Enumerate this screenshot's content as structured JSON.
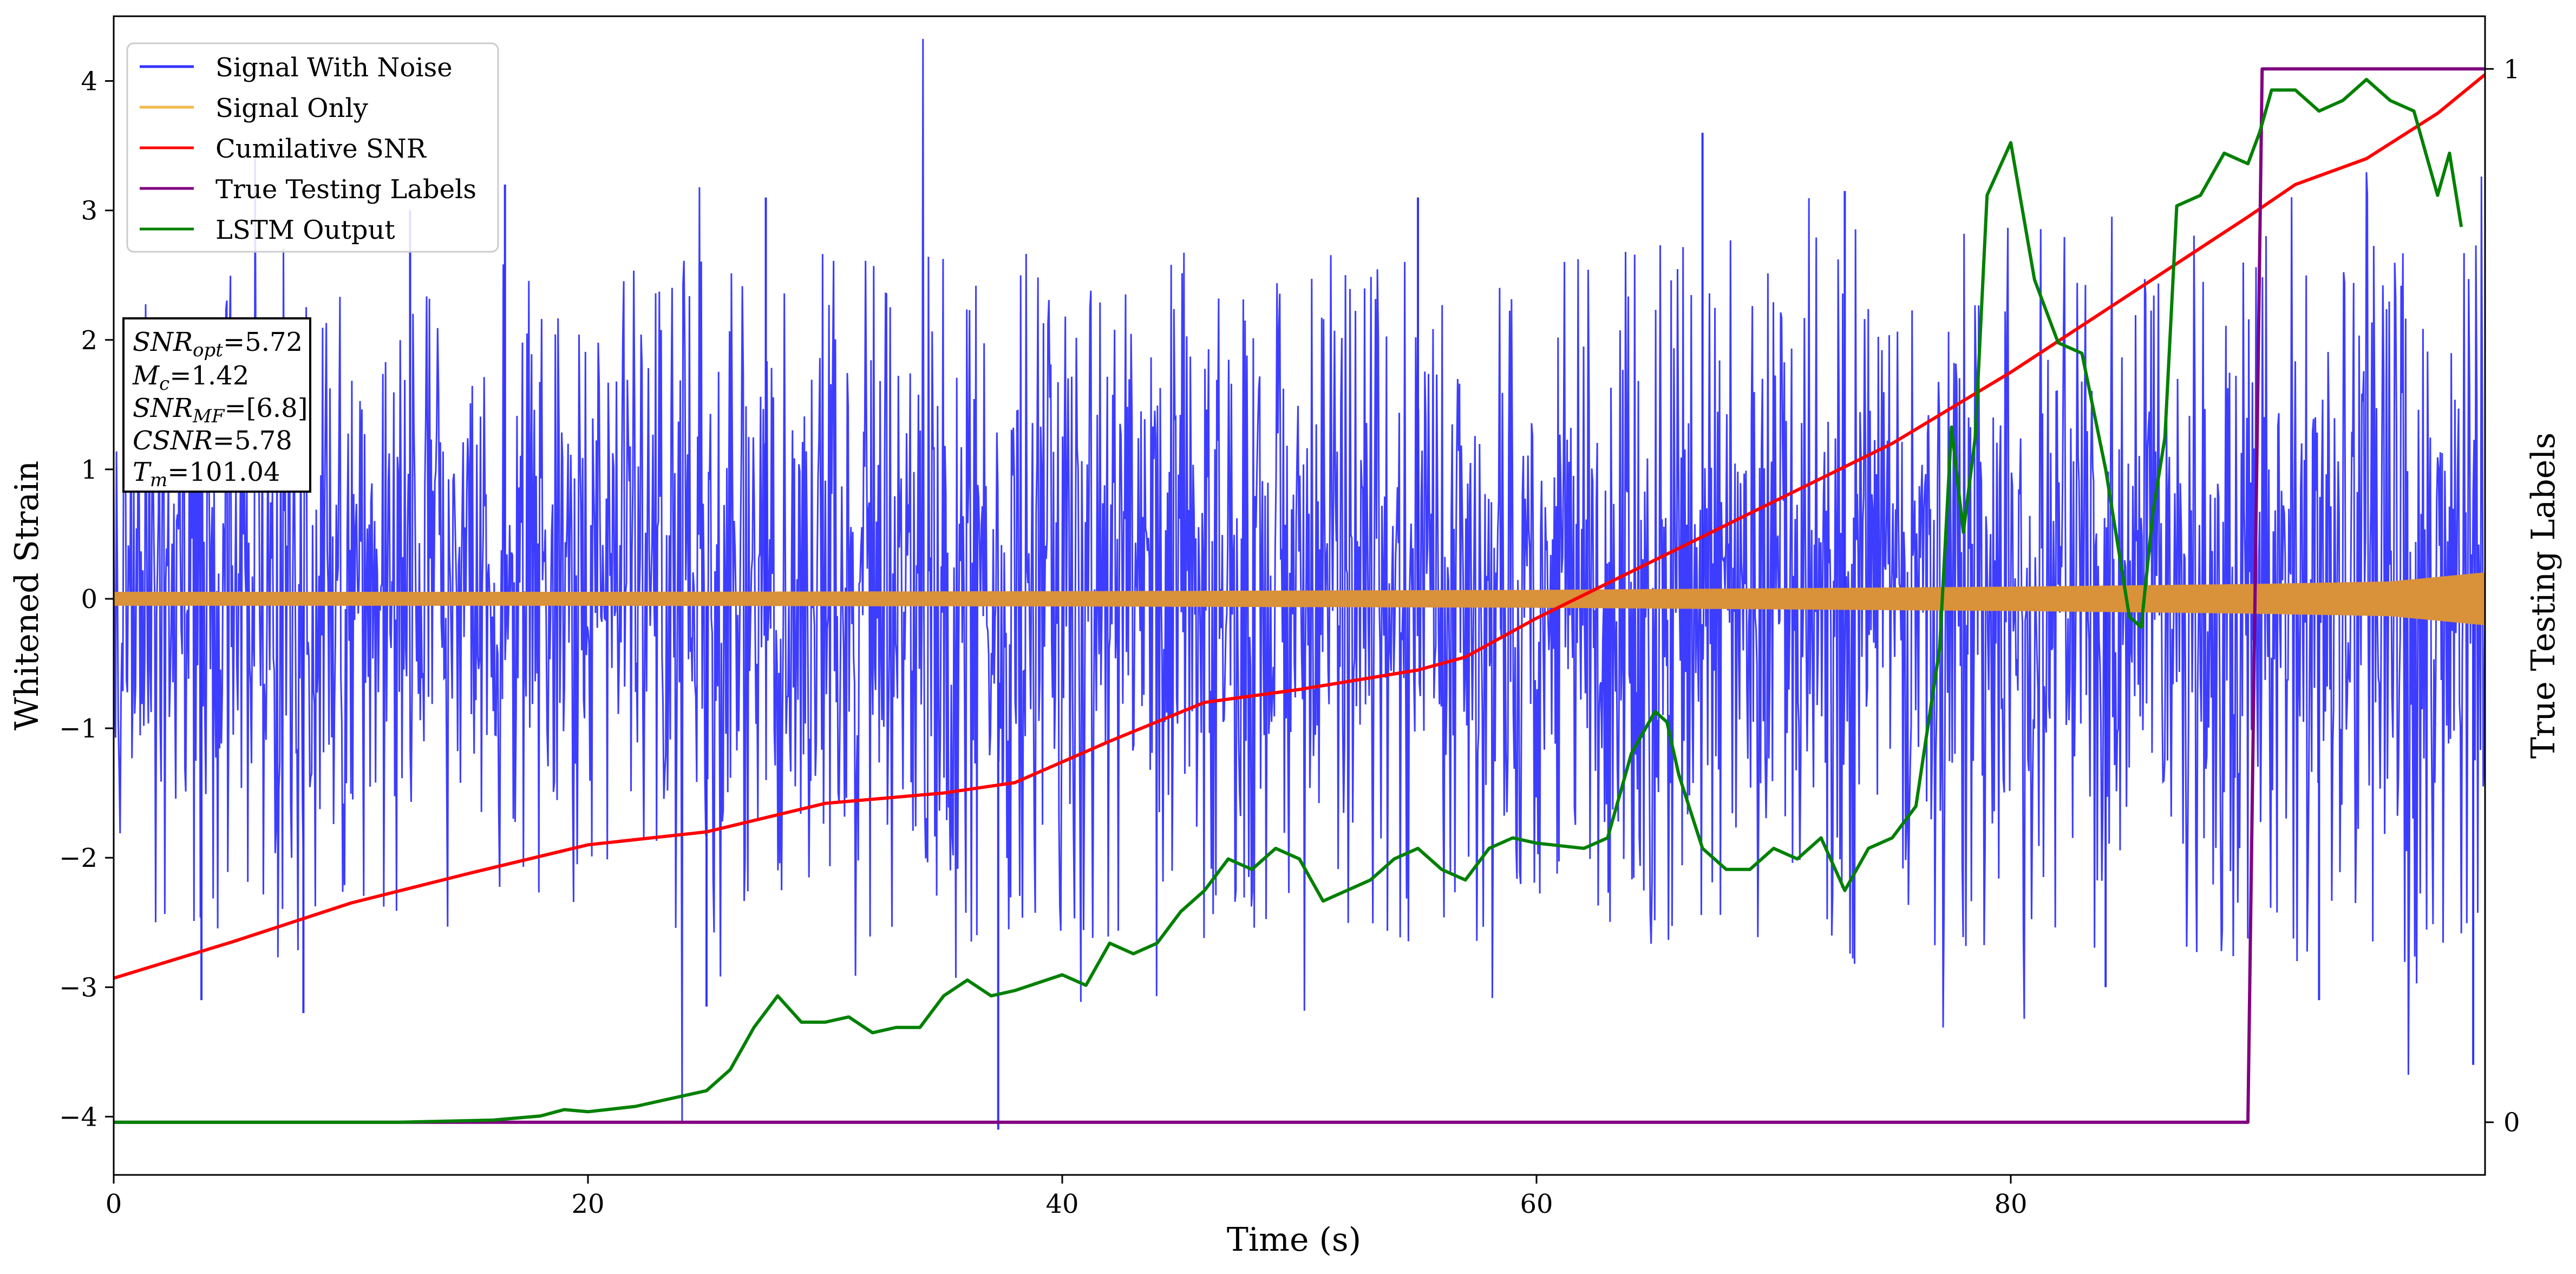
{
  "chart_data": {
    "type": "line",
    "xlabel": "Time (s)",
    "ylabel_left": "Whitened Strain",
    "ylabel_right": "True Testing Labels",
    "xlim": [
      0,
      100
    ],
    "ylim_left": [
      -4.45,
      4.5
    ],
    "ylim_right": [
      -0.05,
      1.05
    ],
    "x_ticks": [
      0,
      20,
      40,
      60,
      80
    ],
    "y_ticks_left": [
      -4,
      -3,
      -2,
      -1,
      0,
      1,
      2,
      3,
      4
    ],
    "y_ticks_right": [
      0,
      1
    ],
    "grid": false,
    "legend": {
      "position": "top-left",
      "entries": [
        {
          "name": "Signal With Noise",
          "color": "#3333ff"
        },
        {
          "name": "Signal Only",
          "color": "#f5b84a"
        },
        {
          "name": "Cumilative SNR",
          "color": "#ff0000"
        },
        {
          "name": "True Testing Labels",
          "color": "#800080"
        },
        {
          "name": "LSTM Output",
          "color": "#008000"
        }
      ]
    },
    "annotation": {
      "lines": [
        {
          "sym": "SNR",
          "sub": "opt",
          "value": "=5.72"
        },
        {
          "sym": "M",
          "sub": "c",
          "value": "=1.42"
        },
        {
          "sym": "SNR",
          "sub": "MF",
          "value": "=[6.8]"
        },
        {
          "sym": "CSNR",
          "sub": "",
          "value": "=5.78"
        },
        {
          "sym": "T",
          "sub": "m",
          "value": "=101.04"
        }
      ]
    },
    "series": [
      {
        "name": "Signal With Noise",
        "axis": "left",
        "color": "#3333ff",
        "envelope": {
          "x": [
            0,
            10,
            20,
            30,
            40,
            50,
            60,
            70,
            80,
            90,
            100
          ],
          "typical_high": [
            1.8,
            1.9,
            1.9,
            2.0,
            2.0,
            2.0,
            2.0,
            2.1,
            2.2,
            2.2,
            2.2
          ],
          "typical_low": [
            -1.9,
            -1.9,
            -1.9,
            -2.0,
            -2.0,
            -2.0,
            -2.0,
            -2.0,
            -2.1,
            -2.1,
            -2.1
          ]
        },
        "spikes": [
          [
            3.7,
            -3.1
          ],
          [
            8.0,
            -3.2
          ],
          [
            12.5,
            3.0
          ],
          [
            16.5,
            3.2
          ],
          [
            25.0,
            -3.15
          ],
          [
            27.5,
            3.1
          ],
          [
            37.3,
            -4.1
          ],
          [
            55.0,
            3.1
          ],
          [
            67.0,
            3.6
          ],
          [
            73.0,
            3.15
          ],
          [
            84.0,
            -3.0
          ],
          [
            93.0,
            -3.1
          ],
          [
            99.5,
            -3.6
          ]
        ]
      },
      {
        "name": "Signal Only",
        "axis": "left",
        "color": "#d9913a",
        "amplitude": {
          "x": [
            0,
            20,
            40,
            60,
            80,
            90,
            96,
            100
          ],
          "values": [
            0.05,
            0.05,
            0.055,
            0.065,
            0.09,
            0.11,
            0.13,
            0.2
          ]
        }
      },
      {
        "name": "Cumilative SNR",
        "axis": "left",
        "color": "#ff0000",
        "x": [
          0,
          5,
          10,
          15,
          20,
          25,
          30,
          35,
          38,
          42,
          46,
          50,
          55,
          57,
          60,
          65,
          70,
          75,
          80,
          85,
          90,
          92,
          95,
          98,
          100
        ],
        "y": [
          -2.93,
          -2.65,
          -2.35,
          -2.12,
          -1.9,
          -1.8,
          -1.58,
          -1.5,
          -1.42,
          -1.1,
          -0.8,
          -0.7,
          -0.55,
          -0.45,
          -0.15,
          0.3,
          0.75,
          1.2,
          1.75,
          2.35,
          2.95,
          3.2,
          3.4,
          3.75,
          4.05
        ]
      },
      {
        "name": "True Testing Labels",
        "axis": "right",
        "color": "#800080",
        "x": [
          0,
          90.0,
          90.6,
          100
        ],
        "y": [
          0,
          0,
          1,
          1
        ]
      },
      {
        "name": "LSTM Output",
        "axis": "right",
        "color": "#008000",
        "x": [
          0,
          12,
          16,
          18,
          19,
          20,
          22,
          25,
          26,
          27,
          28,
          29,
          30,
          31,
          32,
          33,
          34,
          35,
          36,
          37,
          38,
          40,
          41,
          42,
          43,
          44,
          45,
          46,
          47,
          48,
          49,
          50,
          51,
          52,
          53,
          54,
          55,
          56,
          57,
          58,
          59,
          60,
          62,
          63,
          64,
          65,
          65.5,
          66,
          67,
          68,
          69,
          70,
          71,
          72,
          73,
          74,
          75,
          76,
          77,
          77.5,
          78,
          78.5,
          79,
          80,
          81,
          82,
          83,
          84,
          85,
          85.5,
          86,
          86.5,
          87,
          88,
          89,
          90,
          90.5,
          91,
          92,
          93,
          94,
          95,
          96,
          97,
          98,
          98.5,
          99
        ],
        "y": [
          0,
          0,
          0.002,
          0.006,
          0.012,
          0.01,
          0.015,
          0.03,
          0.05,
          0.09,
          0.12,
          0.095,
          0.095,
          0.1,
          0.085,
          0.09,
          0.09,
          0.12,
          0.135,
          0.12,
          0.125,
          0.14,
          0.13,
          0.17,
          0.16,
          0.17,
          0.2,
          0.22,
          0.25,
          0.24,
          0.26,
          0.25,
          0.21,
          0.22,
          0.23,
          0.25,
          0.26,
          0.24,
          0.23,
          0.26,
          0.27,
          0.265,
          0.26,
          0.27,
          0.35,
          0.39,
          0.38,
          0.33,
          0.26,
          0.24,
          0.24,
          0.26,
          0.25,
          0.27,
          0.22,
          0.26,
          0.27,
          0.3,
          0.45,
          0.66,
          0.56,
          0.65,
          0.88,
          0.93,
          0.8,
          0.74,
          0.73,
          0.62,
          0.48,
          0.47,
          0.58,
          0.65,
          0.87,
          0.88,
          0.92,
          0.91,
          0.94,
          0.98,
          0.98,
          0.96,
          0.97,
          0.99,
          0.97,
          0.96,
          0.88,
          0.92,
          0.85
        ]
      }
    ]
  }
}
